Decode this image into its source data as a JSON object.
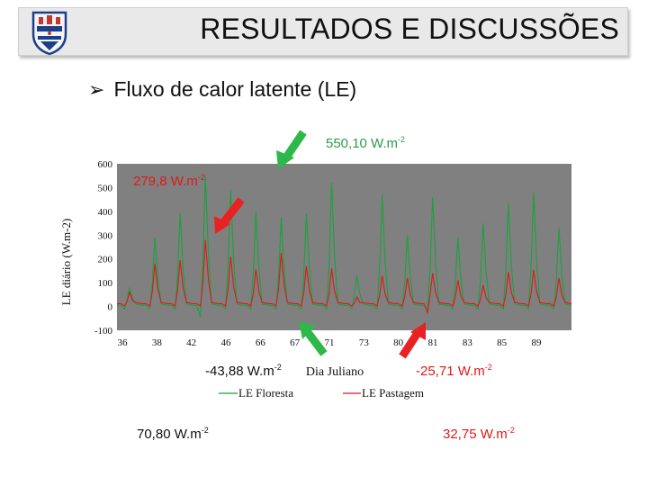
{
  "title": "RESULTADOS E DISCUSSÕES",
  "bullet": "Fluxo de calor latente (LE)",
  "colors": {
    "forest": "#1aa23c",
    "pasture": "#e01818",
    "plot_bg": "#808080",
    "annot_green": "#2e9a4a"
  },
  "annotations": {
    "a1": {
      "value": "550,10 W.m",
      "exp": "-2",
      "color": "green"
    },
    "a2": {
      "value": "279,8 W.m",
      "exp": "-2",
      "color": "red"
    },
    "a3": {
      "value": "-43,88 W.m",
      "exp": "-2",
      "color": "dark"
    },
    "a4": {
      "value": "-25,71 W.m",
      "exp": "-2",
      "color": "red"
    },
    "a5": {
      "value": "70,80 W.m",
      "exp": "-2",
      "color": "dark"
    },
    "a6": {
      "value": "32,75 W.m",
      "exp": "-2",
      "color": "red"
    }
  },
  "chart_data": {
    "type": "line",
    "title": "",
    "xlabel": "Dia Juliano",
    "ylabel": "LE diário (W.m-2)",
    "ylim": [
      -100,
      600
    ],
    "yticks": [
      -100,
      0,
      100,
      200,
      300,
      400,
      500,
      600
    ],
    "xtick_labels": [
      "36",
      "38",
      "42",
      "46",
      "66",
      "67",
      "71",
      "73",
      "80",
      "81",
      "83",
      "85",
      "89"
    ],
    "grid": false,
    "legend_position": "bottom",
    "days": 18,
    "peak_series": [
      {
        "name": "LE Floresta",
        "color": "#1aa23c",
        "peaks": [
          {
            "day": 0.5,
            "value": 80
          },
          {
            "day": 1.5,
            "value": 290
          },
          {
            "day": 2.5,
            "value": 395
          },
          {
            "day": 3.5,
            "value": 550
          },
          {
            "day": 4.5,
            "value": 490
          },
          {
            "day": 5.5,
            "value": 400
          },
          {
            "day": 6.5,
            "value": 375
          },
          {
            "day": 7.5,
            "value": 390
          },
          {
            "day": 8.5,
            "value": 520
          },
          {
            "day": 9.5,
            "value": 130
          },
          {
            "day": 10.5,
            "value": 470
          },
          {
            "day": 11.5,
            "value": 300
          },
          {
            "day": 12.5,
            "value": 460
          },
          {
            "day": 13.5,
            "value": 290
          },
          {
            "day": 14.5,
            "value": 350
          },
          {
            "day": 15.5,
            "value": 435
          },
          {
            "day": 16.5,
            "value": 480
          },
          {
            "day": 17.5,
            "value": 330
          }
        ]
      },
      {
        "name": "LE Pastagem",
        "color": "#e01818",
        "peaks": [
          {
            "day": 0.5,
            "value": 60
          },
          {
            "day": 1.5,
            "value": 180
          },
          {
            "day": 2.5,
            "value": 195
          },
          {
            "day": 3.5,
            "value": 280
          },
          {
            "day": 4.5,
            "value": 210
          },
          {
            "day": 5.5,
            "value": 155
          },
          {
            "day": 6.5,
            "value": 225
          },
          {
            "day": 7.5,
            "value": 170
          },
          {
            "day": 8.5,
            "value": 160
          },
          {
            "day": 9.5,
            "value": 40
          },
          {
            "day": 10.5,
            "value": 130
          },
          {
            "day": 11.5,
            "value": 120
          },
          {
            "day": 12.5,
            "value": 140
          },
          {
            "day": 13.5,
            "value": 110
          },
          {
            "day": 14.5,
            "value": 90
          },
          {
            "day": 15.5,
            "value": 145
          },
          {
            "day": 16.5,
            "value": 155
          },
          {
            "day": 17.5,
            "value": 120
          }
        ]
      }
    ]
  }
}
